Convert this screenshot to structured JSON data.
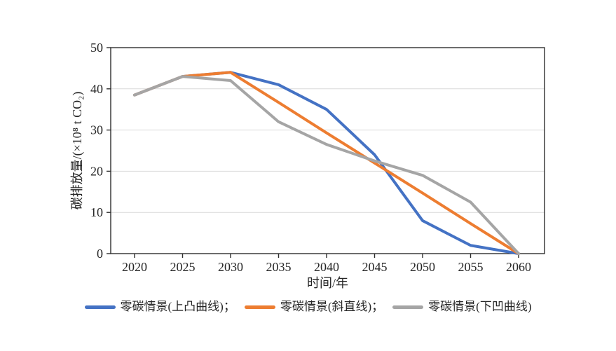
{
  "figure": {
    "background": "#ffffff"
  },
  "chart_data": {
    "type": "line",
    "title": "",
    "xlabel": "时间/年",
    "ylabel": "碳排放量/(×10⁸ t CO₂)",
    "x": [
      2020,
      2025,
      2030,
      2035,
      2040,
      2045,
      2050,
      2055,
      2060
    ],
    "ylim": [
      0,
      50
    ],
    "yticks": [
      0,
      10,
      20,
      30,
      40,
      50
    ],
    "grid": "horizontal",
    "grid_color": "#d9d9d9",
    "axis_color": "#2e2e2e",
    "plot_border": true,
    "markers": false,
    "legend_position": "bottom-center",
    "series": [
      {
        "id": "convex",
        "name": "零碳情景(上凸曲线)",
        "color": "#4472C4",
        "values": [
          38.5,
          43,
          44,
          41,
          35,
          24,
          8,
          2,
          0
        ]
      },
      {
        "id": "straight",
        "name": "零碳情景(斜直线)",
        "color": "#ED7D31",
        "values": [
          38.5,
          43,
          44,
          36.7,
          29.3,
          22,
          14.7,
          7.3,
          0
        ]
      },
      {
        "id": "concave",
        "name": "零碳情景(下凹曲线)",
        "color": "#A5A5A5",
        "values": [
          38.5,
          43,
          42,
          32,
          26.5,
          22.5,
          19,
          12.5,
          0
        ]
      }
    ]
  },
  "legend": {
    "items": [
      {
        "label": "零碳情景(上凸曲线)；"
      },
      {
        "label": "零碳情景(斜直线)；"
      },
      {
        "label": "零碳情景(下凹曲线)"
      }
    ]
  }
}
